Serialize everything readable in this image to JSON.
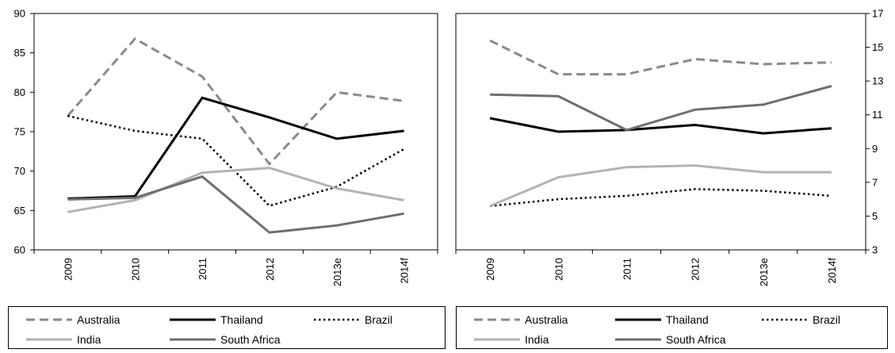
{
  "chart_data": [
    {
      "type": "line",
      "categories": [
        "2009",
        "2010",
        "2011",
        "2012",
        "2013e",
        "2014f"
      ],
      "ylim": [
        60,
        90
      ],
      "yticks": [
        60,
        65,
        70,
        75,
        80,
        85,
        90
      ],
      "yaxis_side": "left",
      "grid": false,
      "legend_position": "bottom",
      "series": [
        {
          "name": "Australia",
          "style": "dashed",
          "color": "#8a8a8a",
          "values": [
            77,
            86.8,
            82,
            70.9,
            80,
            78.9
          ]
        },
        {
          "name": "Thailand",
          "style": "solid",
          "color": "#000000",
          "values": [
            66.5,
            66.8,
            79.3,
            76.8,
            74.1,
            75.1
          ]
        },
        {
          "name": "Brazil",
          "style": "dotted",
          "color": "#000000",
          "values": [
            77,
            75.1,
            74.1,
            65.6,
            68,
            72.8
          ]
        },
        {
          "name": "India",
          "style": "solid",
          "color": "#b3b3b3",
          "values": [
            64.8,
            66.3,
            69.8,
            70.4,
            67.8,
            66.3
          ]
        },
        {
          "name": "South Africa",
          "style": "solid",
          "color": "#6e6e6e",
          "values": [
            66.4,
            66.6,
            69.3,
            62.2,
            63.1,
            64.6
          ]
        }
      ]
    },
    {
      "type": "line",
      "categories": [
        "2009",
        "2010",
        "2011",
        "2012",
        "2013e",
        "2014f"
      ],
      "ylim": [
        3,
        17
      ],
      "yticks": [
        3,
        5,
        7,
        9,
        11,
        13,
        15,
        17
      ],
      "yaxis_side": "right",
      "grid": false,
      "legend_position": "bottom",
      "series": [
        {
          "name": "Australia",
          "style": "dashed",
          "color": "#8a8a8a",
          "values": [
            15.4,
            13.4,
            13.4,
            14.3,
            14.0,
            14.1
          ]
        },
        {
          "name": "Thailand",
          "style": "solid",
          "color": "#000000",
          "values": [
            10.8,
            10.0,
            10.1,
            10.4,
            9.9,
            10.2
          ]
        },
        {
          "name": "Brazil",
          "style": "dotted",
          "color": "#000000",
          "values": [
            5.6,
            6.0,
            6.2,
            6.6,
            6.5,
            6.2
          ]
        },
        {
          "name": "India",
          "style": "solid",
          "color": "#b3b3b3",
          "values": [
            5.6,
            7.3,
            7.9,
            8.0,
            7.6,
            7.6
          ]
        },
        {
          "name": "South Africa",
          "style": "solid",
          "color": "#6e6e6e",
          "values": [
            12.2,
            12.1,
            10.1,
            11.3,
            11.6,
            12.7
          ]
        }
      ]
    }
  ],
  "legends": [
    {
      "items": [
        {
          "label": "Australia",
          "style": "dashed",
          "color": "#8a8a8a"
        },
        {
          "label": "Thailand",
          "style": "solid",
          "color": "#000000"
        },
        {
          "label": "Brazil",
          "style": "dotted",
          "color": "#000000"
        },
        {
          "label": "India",
          "style": "solid",
          "color": "#b3b3b3"
        },
        {
          "label": "South Africa",
          "style": "solid",
          "color": "#6e6e6e"
        }
      ]
    },
    {
      "items": [
        {
          "label": "Australia",
          "style": "dashed",
          "color": "#8a8a8a"
        },
        {
          "label": "Thailand",
          "style": "solid",
          "color": "#000000"
        },
        {
          "label": "Brazil",
          "style": "dotted",
          "color": "#000000"
        },
        {
          "label": "India",
          "style": "solid",
          "color": "#b3b3b3"
        },
        {
          "label": "South Africa",
          "style": "solid",
          "color": "#6e6e6e"
        }
      ]
    }
  ]
}
